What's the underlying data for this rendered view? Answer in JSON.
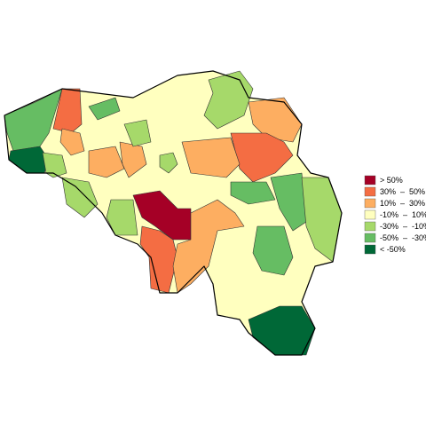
{
  "legend": {
    "items": [
      {
        "label": "> 50%",
        "color": "#a50026"
      },
      {
        "label": "30%  –  50%",
        "color": "#f46d43"
      },
      {
        "label": "10%  –  30%",
        "color": "#fdae61"
      },
      {
        "label": "-10%  –  10%",
        "color": "#ffffbf"
      },
      {
        "label": "-30%  –  -10%",
        "color": "#a6d96a"
      },
      {
        "label": "-50%  –  -30%",
        "color": "#66bd63"
      },
      {
        "label": "< -50%",
        "color": "#006837"
      }
    ]
  }
}
